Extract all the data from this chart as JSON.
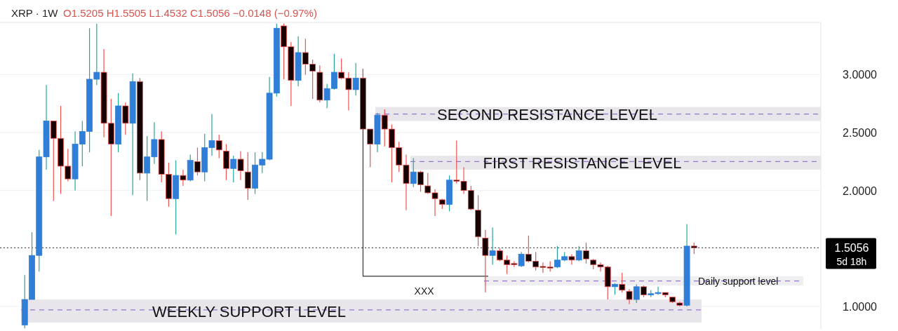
{
  "chart_data": {
    "type": "candlestick",
    "title": "XRP · 1W",
    "subtitle": "O1.5205 H1.5505 L1.4532 C1.5056 −0.0148 (−0.97%)",
    "categories": [
      null,
      null,
      null,
      null,
      null,
      null,
      null,
      null,
      null,
      null,
      null,
      null,
      null,
      null,
      null,
      null,
      null,
      null,
      null,
      null,
      null,
      null,
      null,
      null,
      null,
      null,
      null,
      null,
      null,
      null,
      null,
      null,
      null,
      null,
      null,
      null,
      null,
      null,
      null,
      null,
      null,
      null,
      null,
      null,
      null,
      null,
      null,
      null,
      null,
      null,
      null,
      null,
      null,
      null,
      null,
      null,
      null,
      null,
      null,
      null,
      null,
      null,
      null,
      null,
      null,
      null,
      null,
      null,
      null,
      null,
      null,
      null,
      null,
      null,
      null,
      null,
      null,
      null,
      null,
      null,
      null,
      null,
      null,
      null,
      null,
      null,
      null,
      null,
      null,
      null,
      null,
      null,
      null,
      null,
      null,
      null,
      null,
      null,
      null,
      null,
      null,
      null,
      null,
      null,
      null,
      null,
      null,
      null,
      null,
      null,
      null
    ],
    "ohlc": [
      [
        0.84,
        1.27,
        0.81,
        1.06
      ],
      [
        1.06,
        1.64,
        1.06,
        1.44
      ],
      [
        1.44,
        2.35,
        1.3,
        2.29
      ],
      [
        2.29,
        2.91,
        2.18,
        2.6
      ],
      [
        2.6,
        2.6,
        1.91,
        2.45
      ],
      [
        2.45,
        2.73,
        1.97,
        2.21
      ],
      [
        2.21,
        2.36,
        2.08,
        2.1
      ],
      [
        2.1,
        2.51,
        2.0,
        2.4
      ],
      [
        2.4,
        2.6,
        2.21,
        2.51
      ],
      [
        2.51,
        3.4,
        2.33,
        2.96
      ],
      [
        2.96,
        3.44,
        2.91,
        3.02
      ],
      [
        3.02,
        3.22,
        2.46,
        2.58
      ],
      [
        2.58,
        2.79,
        1.78,
        2.4
      ],
      [
        2.4,
        2.84,
        2.33,
        2.73
      ],
      [
        2.73,
        2.76,
        2.48,
        2.58
      ],
      [
        2.58,
        3.01,
        1.96,
        2.94
      ],
      [
        2.94,
        2.97,
        2.09,
        2.15
      ],
      [
        2.15,
        2.47,
        1.91,
        2.29
      ],
      [
        2.29,
        2.59,
        2.23,
        2.44
      ],
      [
        2.44,
        2.51,
        2.07,
        2.14
      ],
      [
        2.14,
        2.24,
        1.86,
        1.93
      ],
      [
        1.93,
        2.26,
        1.62,
        2.13
      ],
      [
        2.13,
        2.18,
        2.04,
        2.09
      ],
      [
        2.09,
        2.31,
        2.08,
        2.26
      ],
      [
        2.25,
        2.37,
        2.13,
        2.16
      ],
      [
        2.16,
        2.49,
        2.08,
        2.37
      ],
      [
        2.37,
        2.66,
        2.3,
        2.43
      ],
      [
        2.43,
        2.48,
        2.28,
        2.35
      ],
      [
        2.34,
        2.4,
        2.09,
        2.19
      ],
      [
        2.19,
        2.3,
        2.07,
        2.27
      ],
      [
        2.27,
        2.34,
        2.09,
        2.17
      ],
      [
        2.16,
        2.33,
        1.92,
        2.02
      ],
      [
        2.02,
        2.33,
        1.97,
        2.22
      ],
      [
        2.22,
        2.33,
        2.15,
        2.27
      ],
      [
        2.27,
        2.98,
        2.26,
        2.84
      ],
      [
        2.84,
        3.44,
        2.81,
        3.4
      ],
      [
        3.42,
        3.44,
        2.96,
        3.24
      ],
      [
        3.24,
        3.28,
        2.73,
        2.95
      ],
      [
        2.95,
        3.33,
        2.9,
        3.19
      ],
      [
        3.19,
        3.31,
        3.0,
        3.09
      ],
      [
        3.09,
        3.13,
        2.79,
        3.03
      ],
      [
        3.02,
        3.08,
        2.76,
        2.78
      ],
      [
        2.78,
        2.92,
        2.71,
        2.88
      ],
      [
        2.88,
        3.18,
        2.87,
        3.02
      ],
      [
        3.02,
        3.14,
        2.96,
        2.97
      ],
      [
        2.97,
        3.02,
        2.69,
        2.87
      ],
      [
        2.87,
        3.1,
        2.82,
        2.97
      ],
      [
        2.97,
        3.05,
        2.53,
        2.53
      ],
      [
        2.53,
        2.53,
        2.2,
        2.4
      ],
      [
        2.4,
        2.67,
        2.33,
        2.65
      ],
      [
        2.65,
        2.7,
        2.38,
        2.53
      ],
      [
        2.53,
        2.57,
        2.07,
        2.37
      ],
      [
        2.37,
        2.42,
        2.16,
        2.22
      ],
      [
        2.22,
        2.31,
        1.83,
        2.06
      ],
      [
        2.06,
        2.28,
        2.03,
        2.16
      ],
      [
        2.16,
        2.17,
        1.99,
        2.05
      ],
      [
        2.04,
        2.15,
        1.97,
        1.98
      ],
      [
        1.98,
        2.01,
        1.78,
        1.93
      ],
      [
        1.92,
        1.93,
        1.84,
        1.88
      ],
      [
        1.88,
        2.13,
        1.82,
        2.09
      ],
      [
        2.09,
        2.43,
        2.06,
        2.08
      ],
      [
        2.08,
        2.2,
        1.97,
        2.0
      ],
      [
        2.0,
        2.04,
        1.83,
        1.84
      ],
      [
        1.83,
        1.96,
        1.52,
        1.6
      ],
      [
        1.59,
        1.66,
        1.12,
        1.44
      ],
      [
        1.44,
        1.68,
        1.36,
        1.48
      ],
      [
        1.48,
        1.5,
        1.39,
        1.4
      ],
      [
        1.4,
        1.44,
        1.28,
        1.36
      ],
      [
        1.37,
        1.39,
        1.34,
        1.36
      ],
      [
        1.35,
        1.47,
        1.34,
        1.45
      ],
      [
        1.45,
        1.61,
        1.38,
        1.39
      ],
      [
        1.39,
        1.47,
        1.31,
        1.34
      ],
      [
        1.345,
        1.38,
        1.29,
        1.338
      ],
      [
        1.34,
        1.39,
        1.3,
        1.335
      ],
      [
        1.34,
        1.52,
        1.33,
        1.4
      ],
      [
        1.4,
        1.47,
        1.39,
        1.43
      ],
      [
        1.43,
        1.45,
        1.36,
        1.4
      ],
      [
        1.4,
        1.52,
        1.39,
        1.48
      ],
      [
        1.48,
        1.55,
        1.37,
        1.41
      ],
      [
        1.4,
        1.41,
        1.32,
        1.36
      ],
      [
        1.36,
        1.38,
        1.3,
        1.34
      ],
      [
        1.34,
        1.35,
        1.06,
        1.17
      ],
      [
        1.17,
        1.2,
        1.1,
        1.19
      ],
      [
        1.19,
        1.29,
        1.12,
        1.14
      ],
      [
        1.13,
        1.15,
        1.02,
        1.06
      ],
      [
        1.06,
        1.19,
        1.03,
        1.17
      ],
      [
        1.17,
        1.18,
        1.08,
        1.1
      ],
      [
        1.1,
        1.14,
        1.08,
        1.11
      ],
      [
        1.11,
        1.17,
        1.1,
        1.12
      ],
      [
        1.12,
        1.12,
        1.08,
        1.1
      ],
      [
        1.08,
        1.08,
        1.03,
        1.04
      ],
      [
        1.03,
        1.04,
        1.0,
        1.01
      ],
      [
        1.01,
        1.71,
        1.0,
        1.5204
      ],
      [
        1.5205,
        1.5505,
        1.4532,
        1.5056
      ],
      null,
      null,
      null,
      null,
      null,
      null,
      null,
      null,
      null,
      null,
      null,
      null,
      null,
      null,
      null,
      null,
      null
    ],
    "ylim": [
      0.8,
      3.45
    ],
    "yticks": [
      {
        "value": 1,
        "label": "1.0000"
      },
      {
        "value": 2,
        "label": "2.0000"
      },
      {
        "value": 2.5,
        "label": "2.5000"
      },
      {
        "value": 3,
        "label": "3.0000"
      }
    ],
    "grid": "y",
    "tick_labels": "y",
    "bands": [
      {
        "axis": "y",
        "from": 2.6,
        "to": 2.72,
        "label": "SECOND RESISTANCE LEVEL",
        "color": "#e4e1e8"
      },
      {
        "axis": "y",
        "from": 2.18,
        "to": 2.3,
        "label": "FIRST RESISTANCE LEVEL",
        "color": "#e4e1e8"
      },
      {
        "axis": "y",
        "from": 1.18,
        "to": 1.26,
        "label": "Daily support level",
        "color": "#ecebef"
      },
      {
        "axis": "y",
        "from": 0.86,
        "to": 1.06,
        "label": "WEEKLY SUPPORT LEVEL",
        "color": "#e4e1e8"
      }
    ],
    "ref_lines": [
      {
        "axis": "y",
        "value": 2.66,
        "color": "#9575cd",
        "line_style": "dashed"
      },
      {
        "axis": "y",
        "value": 2.25,
        "color": "#9575cd",
        "line_style": "dashed"
      },
      {
        "axis": "y",
        "value": 1.22,
        "color": "#9575cd",
        "line_style": "dashed"
      },
      {
        "axis": "y",
        "value": 0.97,
        "color": "#9575cd",
        "line_style": "dashed"
      },
      {
        "axis": "y",
        "value": 1.5056,
        "label": "1.5056",
        "color": "#555555",
        "line_style": "dotted"
      }
    ],
    "annotations": [
      "5d 18h",
      "XXX"
    ]
  }
}
